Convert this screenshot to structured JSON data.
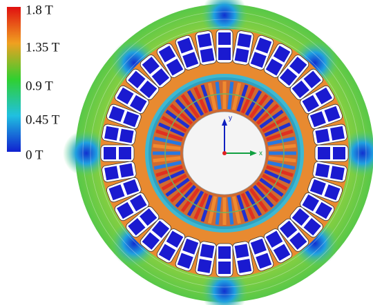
{
  "colorbar": {
    "labels": [
      "1.8 T",
      "1.35 T",
      "0.9 T",
      "0.45 T",
      "0 T"
    ]
  },
  "axes": {
    "y": "y",
    "x": "x"
  }
}
